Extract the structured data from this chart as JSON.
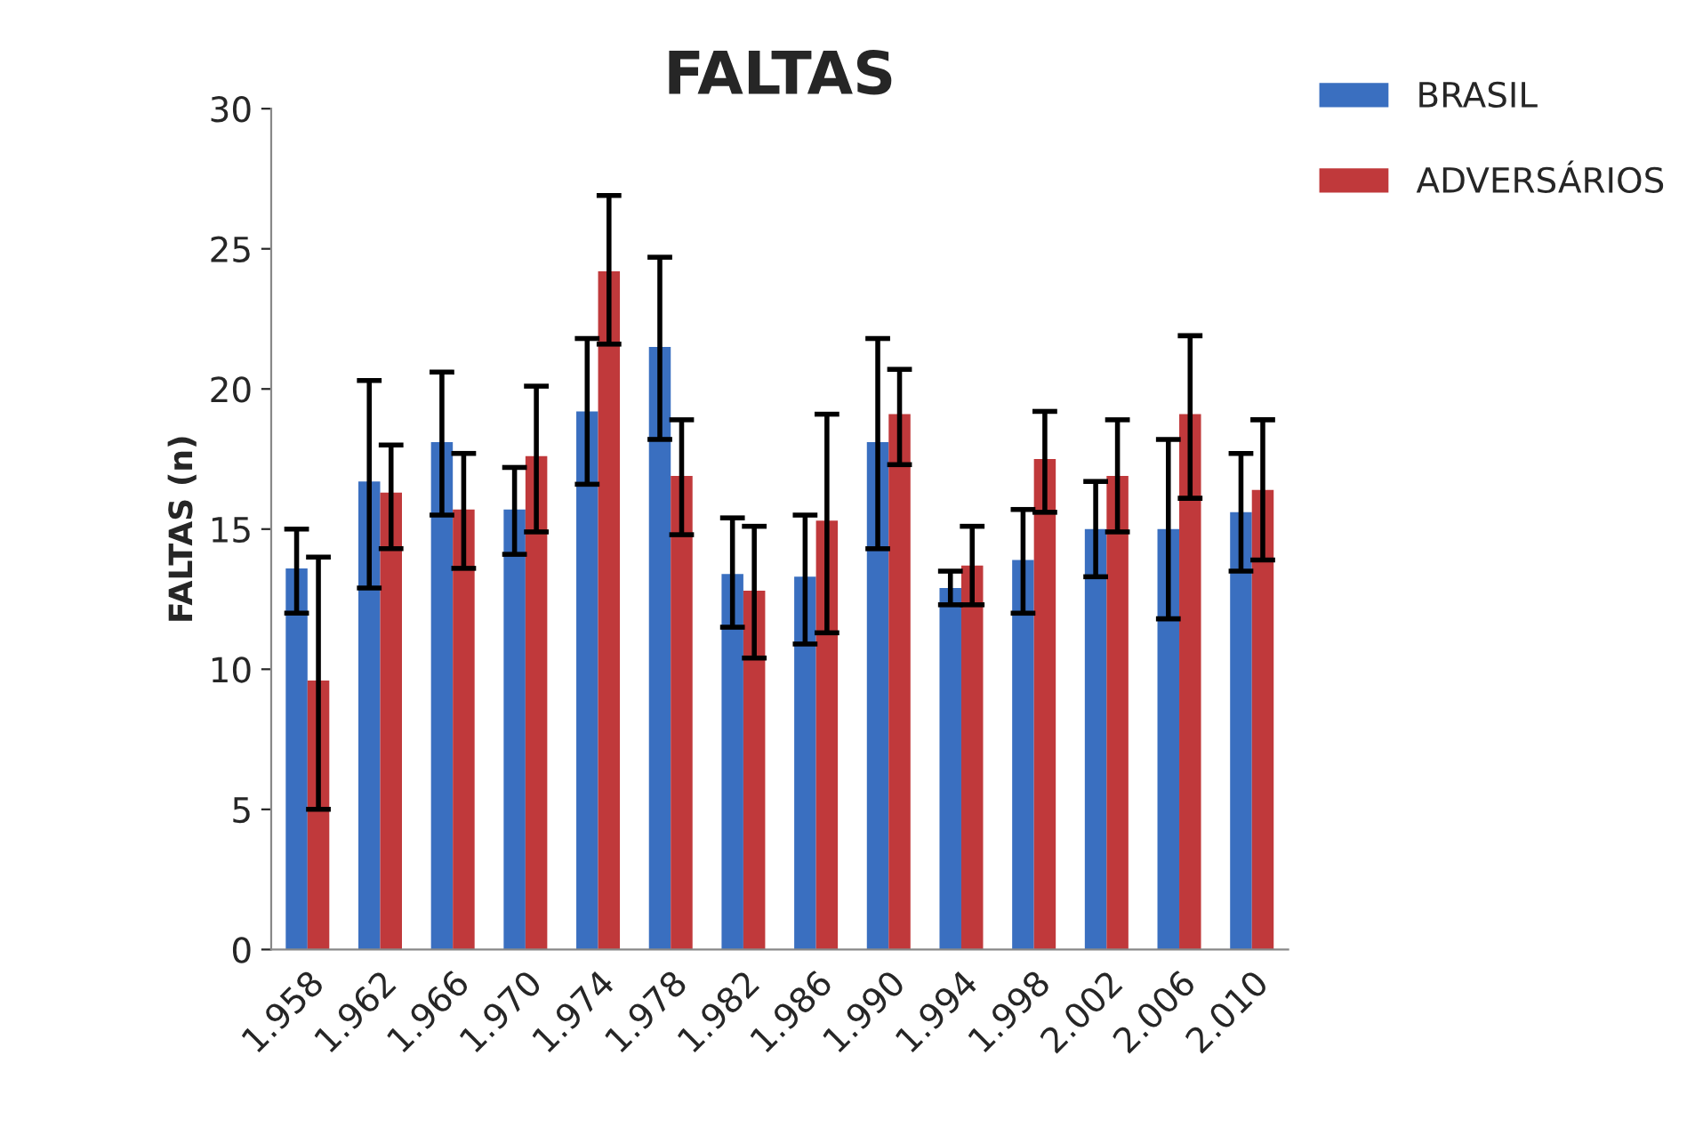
{
  "chart_data": {
    "type": "bar",
    "title": "FALTAS",
    "ylabel": "FALTAS (n)",
    "categories": [
      "1.958",
      "1.962",
      "1.966",
      "1.970",
      "1.974",
      "1.978",
      "1.982",
      "1.986",
      "1.990",
      "1.994",
      "1.998",
      "2.002",
      "2.006",
      "2.010"
    ],
    "series": [
      {
        "name": "BRASIL",
        "color": "#3a6fc0",
        "values": [
          13.6,
          16.7,
          18.1,
          15.7,
          19.2,
          21.5,
          13.4,
          13.3,
          18.1,
          12.9,
          13.9,
          15.0,
          15.0,
          15.6
        ],
        "errors": [
          [
            12.0,
            15.0
          ],
          [
            12.9,
            20.3
          ],
          [
            15.5,
            20.6
          ],
          [
            14.1,
            17.2
          ],
          [
            16.6,
            21.8
          ],
          [
            18.2,
            24.7
          ],
          [
            11.5,
            15.4
          ],
          [
            10.9,
            15.5
          ],
          [
            14.3,
            21.8
          ],
          [
            12.3,
            13.5
          ],
          [
            12.0,
            15.7
          ],
          [
            13.3,
            16.7
          ],
          [
            11.8,
            18.2
          ],
          [
            13.5,
            17.7
          ]
        ]
      },
      {
        "name": "ADVERSÁRIOS",
        "color": "#c0393b",
        "values": [
          9.6,
          16.3,
          15.7,
          17.6,
          24.2,
          16.9,
          12.8,
          15.3,
          19.1,
          13.7,
          17.5,
          16.9,
          19.1,
          16.4
        ],
        "errors": [
          [
            5.0,
            14.0
          ],
          [
            14.3,
            18.0
          ],
          [
            13.6,
            17.7
          ],
          [
            14.9,
            20.1
          ],
          [
            21.6,
            26.9
          ],
          [
            14.8,
            18.9
          ],
          [
            10.4,
            15.1
          ],
          [
            11.3,
            19.1
          ],
          [
            17.3,
            20.7
          ],
          [
            12.3,
            15.1
          ],
          [
            15.6,
            19.2
          ],
          [
            14.9,
            18.9
          ],
          [
            16.1,
            21.9
          ],
          [
            13.9,
            18.9
          ]
        ]
      }
    ],
    "ylim": [
      0,
      30
    ],
    "yticks": [
      0,
      5,
      10,
      15,
      20,
      25,
      30
    ],
    "grid": false,
    "legend": "top right"
  }
}
